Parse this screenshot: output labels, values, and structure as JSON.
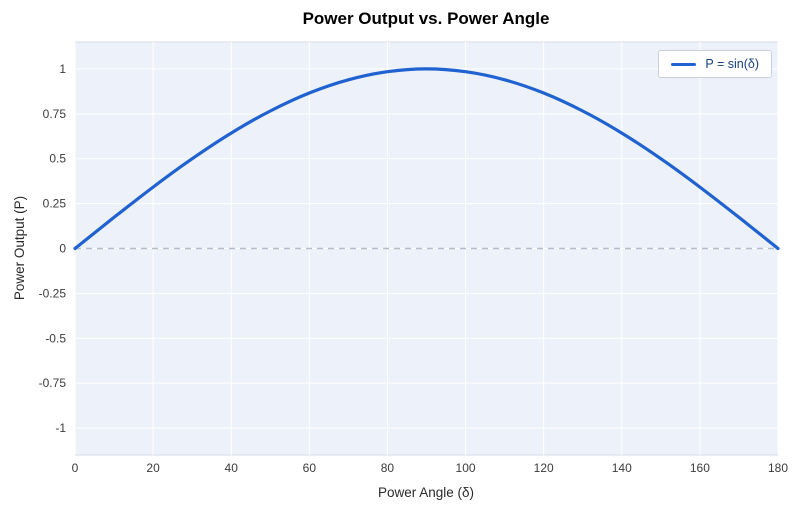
{
  "chart_data": {
    "type": "line",
    "title": "Power Output vs. Power Angle",
    "xlabel": "Power Angle (δ)",
    "ylabel": "Power Output (P)",
    "xlim": [
      0,
      180
    ],
    "ylim": [
      -1.15,
      1.15
    ],
    "x_ticks": [
      0,
      20,
      40,
      60,
      80,
      100,
      120,
      140,
      160,
      180
    ],
    "y_ticks": [
      -1,
      -0.75,
      -0.5,
      -0.25,
      0,
      0.25,
      0.5,
      0.75,
      1
    ],
    "y_tick_labels": [
      "-1",
      "-0.75",
      "-0.5",
      "-0.25",
      "0",
      "0.25",
      "0.5",
      "0.75",
      "1"
    ],
    "grid": true,
    "legend": {
      "position": "top-right",
      "entries": [
        {
          "label": "P = sin(δ)",
          "color": "#1f62d0"
        }
      ]
    },
    "series": [
      {
        "name": "P = sin(δ)",
        "function": "sin(delta)",
        "color": "#1f62d0",
        "x": [
          0,
          10,
          20,
          30,
          40,
          50,
          60,
          70,
          80,
          90,
          100,
          110,
          120,
          130,
          140,
          150,
          160,
          170,
          180
        ],
        "y": [
          0,
          0.1736,
          0.342,
          0.5,
          0.6428,
          0.766,
          0.866,
          0.9397,
          0.9848,
          1,
          0.9848,
          0.9397,
          0.866,
          0.766,
          0.6428,
          0.5,
          0.342,
          0.1736,
          0
        ]
      }
    ],
    "annotations": [
      {
        "type": "zero-line",
        "y": 0,
        "style": "dashed"
      }
    ],
    "colors": {
      "line": "#1f62d0",
      "plot_bg": "#edf1fa",
      "plot_border": "#d7dbe7",
      "grid": "#ffffff",
      "zero_line": "#b7bac8",
      "text": "#3c3c3c"
    }
  }
}
